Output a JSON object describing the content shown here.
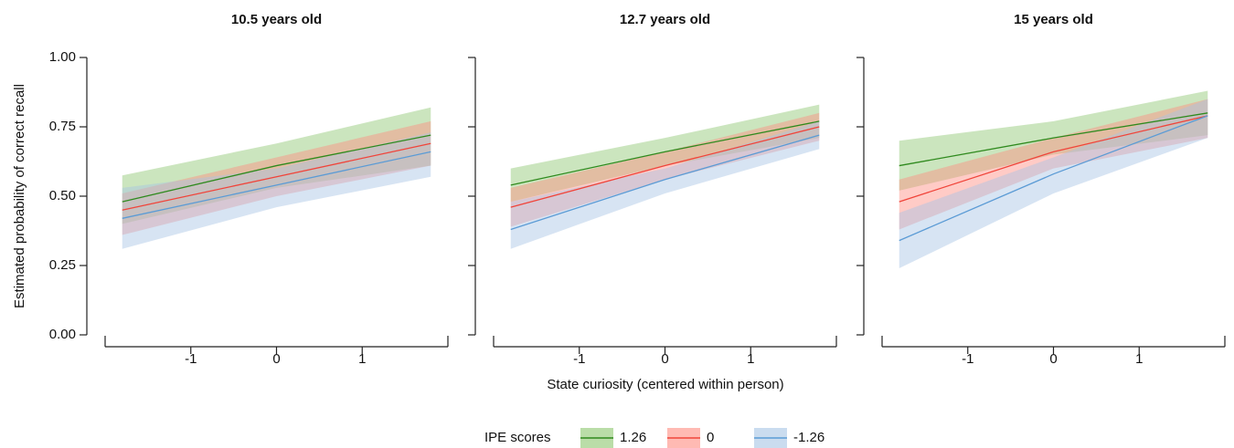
{
  "ylabel": "Estimated probability of correct recall",
  "xlabel": "State curiosity (centered within person)",
  "legend_title": "IPE scores",
  "chart_data": [
    {
      "type": "line",
      "title": "10.5 years old",
      "x": [
        -1.8,
        0,
        1.8
      ],
      "xlim": [
        -2,
        2
      ],
      "xticks": [
        -1,
        0,
        1
      ],
      "ylim": [
        0,
        1
      ],
      "yticks": [
        {
          "value": 0,
          "label": "0.00"
        },
        {
          "value": 0.25,
          "label": "0.25"
        },
        {
          "value": 0.5,
          "label": "0.50"
        },
        {
          "value": 0.75,
          "label": "0.75"
        },
        {
          "value": 1,
          "label": "1.00"
        }
      ],
      "series": [
        {
          "name": "1.26",
          "color": "#2f8a1e",
          "band_color": "#8cc66e",
          "values": [
            0.48,
            0.61,
            0.72
          ],
          "lower": [
            0.4,
            0.53,
            0.61
          ],
          "upper": [
            0.575,
            0.69,
            0.82
          ]
        },
        {
          "name": "0",
          "color": "#f0443a",
          "band_color": "#ff8c80",
          "values": [
            0.45,
            0.57,
            0.69
          ],
          "lower": [
            0.36,
            0.5,
            0.61
          ],
          "upper": [
            0.51,
            0.64,
            0.77
          ]
        },
        {
          "name": "-1.26",
          "color": "#5b9bd5",
          "band_color": "#a7c4e4",
          "values": [
            0.42,
            0.54,
            0.66
          ],
          "lower": [
            0.31,
            0.46,
            0.57
          ],
          "upper": [
            0.53,
            0.6,
            0.73
          ]
        }
      ]
    },
    {
      "type": "line",
      "title": "12.7 years old",
      "x": [
        -1.8,
        0,
        1.8
      ],
      "xlim": [
        -2,
        2
      ],
      "xticks": [
        -1,
        0,
        1
      ],
      "ylim": [
        0,
        1
      ],
      "yticks": [
        0,
        0.25,
        0.5,
        0.75,
        1
      ],
      "series": [
        {
          "name": "1.26",
          "color": "#2f8a1e",
          "band_color": "#8cc66e",
          "values": [
            0.54,
            0.66,
            0.77
          ],
          "lower": [
            0.48,
            0.61,
            0.71
          ],
          "upper": [
            0.6,
            0.71,
            0.83
          ]
        },
        {
          "name": "0",
          "color": "#f0443a",
          "band_color": "#ff8c80",
          "values": [
            0.46,
            0.61,
            0.75
          ],
          "lower": [
            0.39,
            0.56,
            0.7
          ],
          "upper": [
            0.53,
            0.66,
            0.8
          ]
        },
        {
          "name": "-1.26",
          "color": "#5b9bd5",
          "band_color": "#a7c4e4",
          "values": [
            0.38,
            0.56,
            0.72
          ],
          "lower": [
            0.31,
            0.51,
            0.67
          ],
          "upper": [
            0.48,
            0.6,
            0.77
          ]
        }
      ]
    },
    {
      "type": "line",
      "title": "15 years old",
      "x": [
        -1.8,
        0,
        1.8
      ],
      "xlim": [
        -2,
        2
      ],
      "xticks": [
        -1,
        0,
        1
      ],
      "ylim": [
        0,
        1
      ],
      "yticks": [
        0,
        0.25,
        0.5,
        0.75,
        1
      ],
      "series": [
        {
          "name": "1.26",
          "color": "#2f8a1e",
          "band_color": "#8cc66e",
          "values": [
            0.61,
            0.71,
            0.8
          ],
          "lower": [
            0.52,
            0.65,
            0.72
          ],
          "upper": [
            0.7,
            0.77,
            0.88
          ]
        },
        {
          "name": "0",
          "color": "#f0443a",
          "band_color": "#ff8c80",
          "values": [
            0.48,
            0.66,
            0.79
          ],
          "lower": [
            0.38,
            0.6,
            0.71
          ],
          "upper": [
            0.56,
            0.71,
            0.85
          ]
        },
        {
          "name": "-1.26",
          "color": "#5b9bd5",
          "band_color": "#a7c4e4",
          "values": [
            0.34,
            0.58,
            0.79
          ],
          "lower": [
            0.24,
            0.51,
            0.71
          ],
          "upper": [
            0.44,
            0.64,
            0.85
          ]
        }
      ]
    }
  ]
}
